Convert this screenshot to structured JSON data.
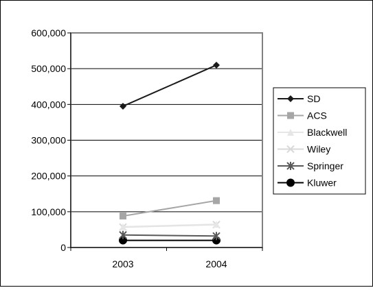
{
  "chart_data": {
    "type": "line",
    "title": "",
    "xlabel": "",
    "ylabel": "",
    "categories": [
      "2003",
      "2004"
    ],
    "ylim": [
      0,
      600000
    ],
    "yticks": [
      0,
      100000,
      200000,
      300000,
      400000,
      500000,
      600000
    ],
    "ytick_labels": [
      "0",
      "100,000",
      "200,000",
      "300,000",
      "400,000",
      "500,000",
      "600,000"
    ],
    "grid": "horizontal",
    "legend_position": "right",
    "series": [
      {
        "name": "SD",
        "values": [
          395000,
          510000
        ],
        "color": "#1a1a1a",
        "marker": "diamond"
      },
      {
        "name": "ACS",
        "values": [
          88000,
          131000
        ],
        "color": "#a6a6a6",
        "marker": "square"
      },
      {
        "name": "Blackwell",
        "values": [
          58000,
          65000
        ],
        "color": "#e6e6e6",
        "marker": "triangle"
      },
      {
        "name": "Wiley",
        "values": [
          57000,
          64000
        ],
        "color": "#d9d9d9",
        "marker": "x"
      },
      {
        "name": "Springer",
        "values": [
          35000,
          32000
        ],
        "color": "#595959",
        "marker": "star"
      },
      {
        "name": "Kluwer",
        "values": [
          20000,
          20000
        ],
        "color": "#000000",
        "marker": "circle"
      }
    ]
  }
}
